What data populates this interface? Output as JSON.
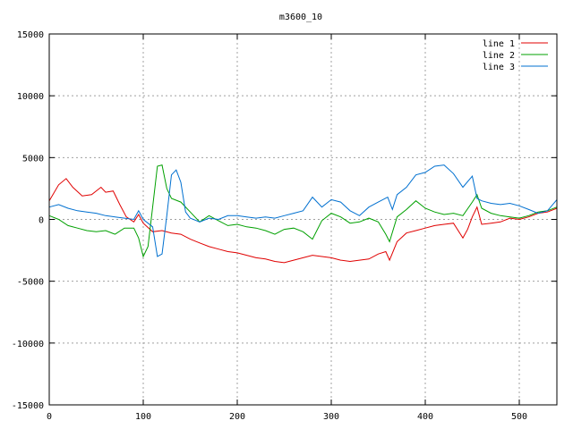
{
  "chart_data": {
    "type": "line",
    "title": "m3600_10",
    "xlabel": "",
    "ylabel": "",
    "xlim": [
      0,
      540
    ],
    "ylim": [
      -15000,
      15000
    ],
    "x_ticks": [
      0,
      100,
      200,
      300,
      400,
      500
    ],
    "y_ticks": [
      -15000,
      -10000,
      -5000,
      0,
      5000,
      10000,
      15000
    ],
    "x_tick_labels": [
      "0",
      "100",
      "200",
      "300",
      "400",
      "500"
    ],
    "y_tick_labels": [
      "-15000",
      "-10000",
      "-5000",
      "0",
      "5000",
      "10000",
      "15000"
    ],
    "grid": true,
    "legend_position": "top-right",
    "series": [
      {
        "name": "line 1",
        "color": "#e00000",
        "x": [
          0,
          10,
          18,
          25,
          35,
          45,
          55,
          60,
          68,
          75,
          82,
          90,
          95,
          100,
          110,
          120,
          130,
          140,
          150,
          160,
          170,
          180,
          190,
          200,
          210,
          220,
          230,
          240,
          250,
          260,
          270,
          280,
          290,
          300,
          310,
          320,
          330,
          340,
          350,
          358,
          362,
          370,
          380,
          390,
          400,
          410,
          420,
          430,
          440,
          445,
          450,
          455,
          460,
          470,
          480,
          490,
          500,
          510,
          520,
          530,
          540
        ],
        "y": [
          1500,
          2800,
          3300,
          2600,
          1900,
          2000,
          2600,
          2200,
          2300,
          1200,
          200,
          -200,
          400,
          -300,
          -1000,
          -900,
          -1100,
          -1200,
          -1600,
          -1900,
          -2200,
          -2400,
          -2600,
          -2700,
          -2900,
          -3100,
          -3200,
          -3400,
          -3500,
          -3300,
          -3100,
          -2900,
          -3000,
          -3100,
          -3300,
          -3400,
          -3300,
          -3200,
          -2800,
          -2600,
          -3300,
          -1800,
          -1100,
          -900,
          -700,
          -500,
          -400,
          -300,
          -1500,
          -800,
          200,
          1000,
          -400,
          -300,
          -200,
          100,
          0,
          200,
          500,
          600,
          900
        ]
      },
      {
        "name": "line 2",
        "color": "#00a000",
        "x": [
          0,
          10,
          20,
          30,
          40,
          50,
          60,
          70,
          80,
          90,
          95,
          100,
          105,
          110,
          115,
          120,
          125,
          130,
          140,
          150,
          160,
          170,
          180,
          190,
          200,
          210,
          220,
          230,
          240,
          250,
          260,
          270,
          280,
          290,
          300,
          310,
          320,
          330,
          340,
          350,
          358,
          362,
          370,
          380,
          390,
          400,
          410,
          420,
          430,
          440,
          450,
          455,
          460,
          470,
          480,
          490,
          500,
          510,
          520,
          530,
          540
        ],
        "y": [
          300,
          0,
          -500,
          -700,
          -900,
          -1000,
          -900,
          -1200,
          -700,
          -700,
          -1500,
          -3000,
          -2200,
          1000,
          4300,
          4400,
          2500,
          1700,
          1400,
          600,
          -200,
          300,
          -100,
          -500,
          -400,
          -600,
          -700,
          -900,
          -1200,
          -800,
          -700,
          -1000,
          -1600,
          -100,
          500,
          200,
          -300,
          -200,
          100,
          -200,
          -1200,
          -1800,
          200,
          800,
          1500,
          900,
          600,
          400,
          500,
          300,
          1400,
          2000,
          900,
          500,
          300,
          200,
          100,
          300,
          600,
          700,
          1000
        ]
      },
      {
        "name": "line 3",
        "color": "#0070d0",
        "x": [
          0,
          10,
          20,
          30,
          40,
          50,
          60,
          70,
          80,
          90,
          95,
          100,
          110,
          115,
          120,
          125,
          130,
          135,
          140,
          145,
          150,
          160,
          170,
          180,
          190,
          200,
          210,
          220,
          230,
          240,
          250,
          260,
          270,
          280,
          290,
          300,
          310,
          320,
          330,
          340,
          350,
          360,
          365,
          370,
          380,
          390,
          400,
          410,
          420,
          430,
          440,
          450,
          455,
          460,
          470,
          480,
          490,
          500,
          510,
          520,
          530,
          540
        ],
        "y": [
          1000,
          1200,
          900,
          700,
          600,
          500,
          300,
          200,
          100,
          0,
          700,
          0,
          -600,
          -3000,
          -2800,
          300,
          3600,
          4000,
          3000,
          600,
          100,
          -200,
          100,
          0,
          300,
          300,
          200,
          100,
          200,
          100,
          300,
          500,
          700,
          1800,
          1000,
          1600,
          1400,
          700,
          300,
          1000,
          1400,
          1800,
          800,
          2000,
          2600,
          3600,
          3800,
          4300,
          4400,
          3700,
          2600,
          3500,
          1700,
          1500,
          1300,
          1200,
          1300,
          1100,
          800,
          500,
          700,
          1600
        ]
      }
    ]
  }
}
